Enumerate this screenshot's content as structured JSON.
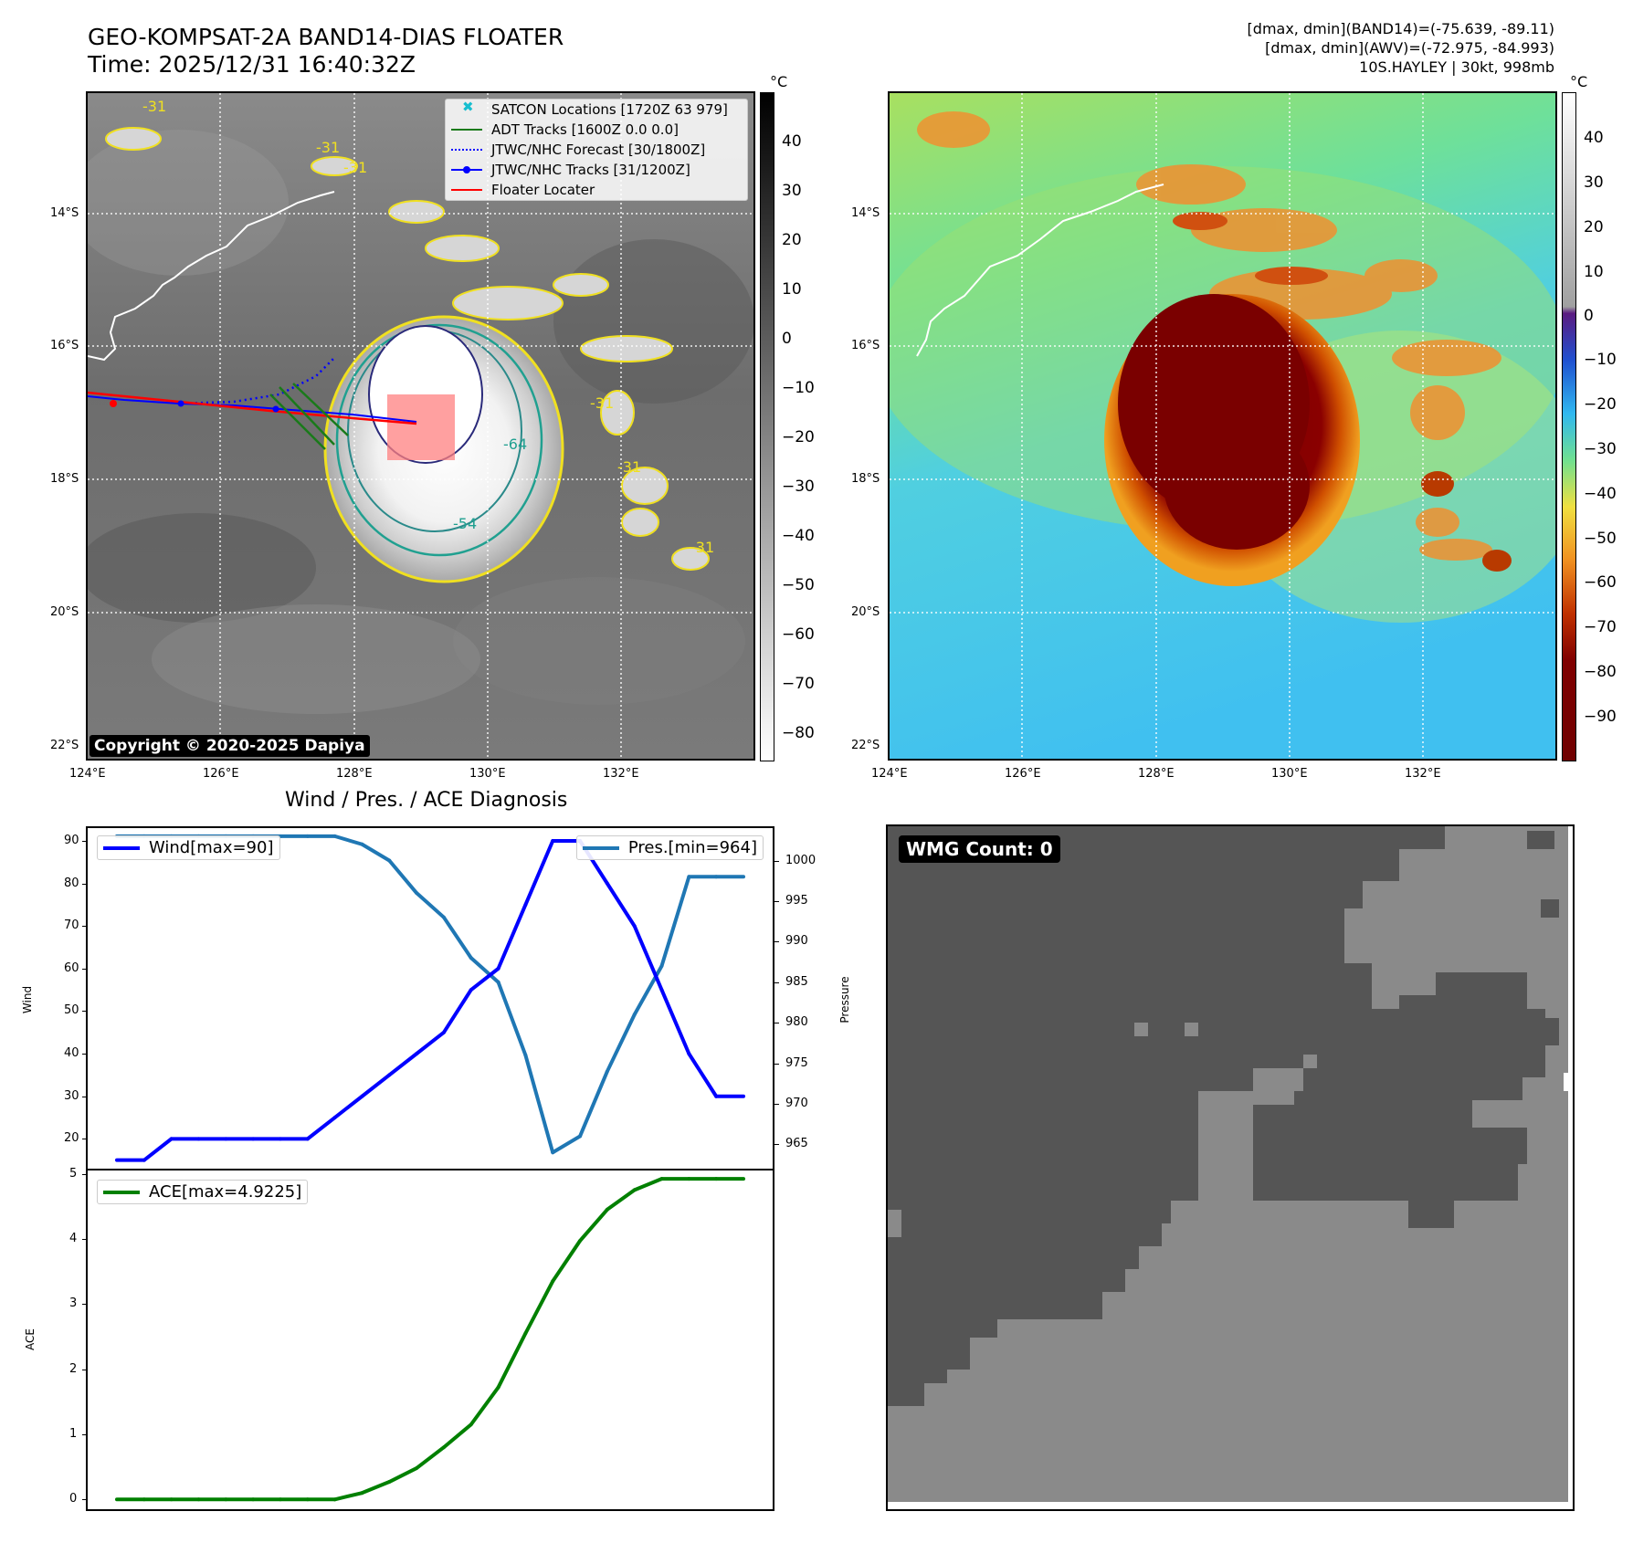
{
  "title": {
    "line1": "GEO-KOMPSAT-2A BAND14-DIAS FLOATER",
    "line2": "Time: 2025/12/31 16:40:32Z"
  },
  "meta": {
    "line1": "[dmax, dmin](BAND14)=(-75.639, -89.11)",
    "line2": "[dmax, dmin](AWV)=(-72.975, -84.993)",
    "line3": "10S.HAYLEY | 30kt, 998mb"
  },
  "map": {
    "lat_labels": [
      "14°S",
      "16°S",
      "18°S",
      "20°S",
      "22°S"
    ],
    "lon_labels": [
      "124°E",
      "126°E",
      "128°E",
      "130°E",
      "132°E"
    ],
    "legend": [
      {
        "label": "SATCON Locations [1720Z 63 979]",
        "color": "#17becf"
      },
      {
        "label": "ADT Tracks [1600Z 0.0 0.0]",
        "color": "#1a7a1a"
      },
      {
        "label": "JTWC/NHC Forecast [30/1800Z]",
        "color": "#0000ff"
      },
      {
        "label": "JTWC/NHC Tracks [31/1200Z]",
        "color": "#0000ff"
      },
      {
        "label": "Floater Locater",
        "color": "#ff0000"
      }
    ],
    "contour_labels": [
      "-31",
      "-31",
      "-31",
      "-31",
      "-31",
      "-54",
      "-64",
      "-31"
    ],
    "copyright": "Copyright © 2020-2025 Dapiya"
  },
  "colorbar_gray": {
    "unit": "°C",
    "ticks": [
      "40",
      "30",
      "20",
      "10",
      "0",
      "−10",
      "−20",
      "−30",
      "−40",
      "−50",
      "−60",
      "−70",
      "−80"
    ]
  },
  "colorbar_color": {
    "unit": "°C",
    "ticks": [
      "40",
      "30",
      "20",
      "10",
      "0",
      "−10",
      "−20",
      "−30",
      "−40",
      "−50",
      "−60",
      "−70",
      "−80",
      "−90"
    ]
  },
  "chart_data": [
    {
      "type": "line",
      "title": "Wind / Pres. / ACE Diagnosis",
      "ylabel": "Wind",
      "ylabel2": "Pressure",
      "ylim": [
        13,
        93
      ],
      "y2lim": [
        962,
        1004
      ],
      "yticks": [
        "90",
        "80",
        "70",
        "60",
        "50",
        "40",
        "30",
        "20"
      ],
      "y2ticks": [
        "1000",
        "995",
        "990",
        "985",
        "980",
        "975",
        "970",
        "965"
      ],
      "x": [
        0,
        1,
        2,
        3,
        4,
        5,
        6,
        7,
        8,
        9,
        10,
        11,
        12,
        13,
        14,
        15,
        16,
        17,
        18,
        19,
        20,
        21,
        22,
        23
      ],
      "series": [
        {
          "name": "Wind[max=90]",
          "color": "#0000ff",
          "axis": "left",
          "values": [
            15,
            15,
            20,
            20,
            20,
            20,
            20,
            20,
            25,
            30,
            35,
            40,
            45,
            55,
            60,
            75,
            90,
            90,
            80,
            70,
            55,
            40,
            30,
            30
          ]
        },
        {
          "name": "Pres.[min=964]",
          "color": "#1f77b4",
          "axis": "right",
          "values": [
            1003,
            1003,
            1003,
            1003,
            1003,
            1003,
            1003,
            1003,
            1003,
            1002,
            1000,
            996,
            993,
            988,
            985,
            976,
            964,
            966,
            974,
            981,
            987,
            998,
            998,
            998
          ]
        }
      ]
    },
    {
      "type": "line",
      "ylabel": "ACE",
      "ylim": [
        -0.15,
        5.05
      ],
      "yticks": [
        "5",
        "4",
        "3",
        "2",
        "1",
        "0"
      ],
      "x": [
        0,
        1,
        2,
        3,
        4,
        5,
        6,
        7,
        8,
        9,
        10,
        11,
        12,
        13,
        14,
        15,
        16,
        17,
        18,
        19,
        20,
        21,
        22,
        23
      ],
      "series": [
        {
          "name": "ACE[max=4.9225]",
          "color": "#008000",
          "values": [
            0,
            0,
            0,
            0,
            0,
            0,
            0,
            0,
            0,
            0.1,
            0.27,
            0.48,
            0.8,
            1.15,
            1.72,
            2.55,
            3.35,
            3.97,
            4.45,
            4.75,
            4.9225,
            4.9225,
            4.9225,
            4.9225
          ]
        }
      ]
    }
  ],
  "wmg": {
    "label": "WMG Count: 0"
  }
}
